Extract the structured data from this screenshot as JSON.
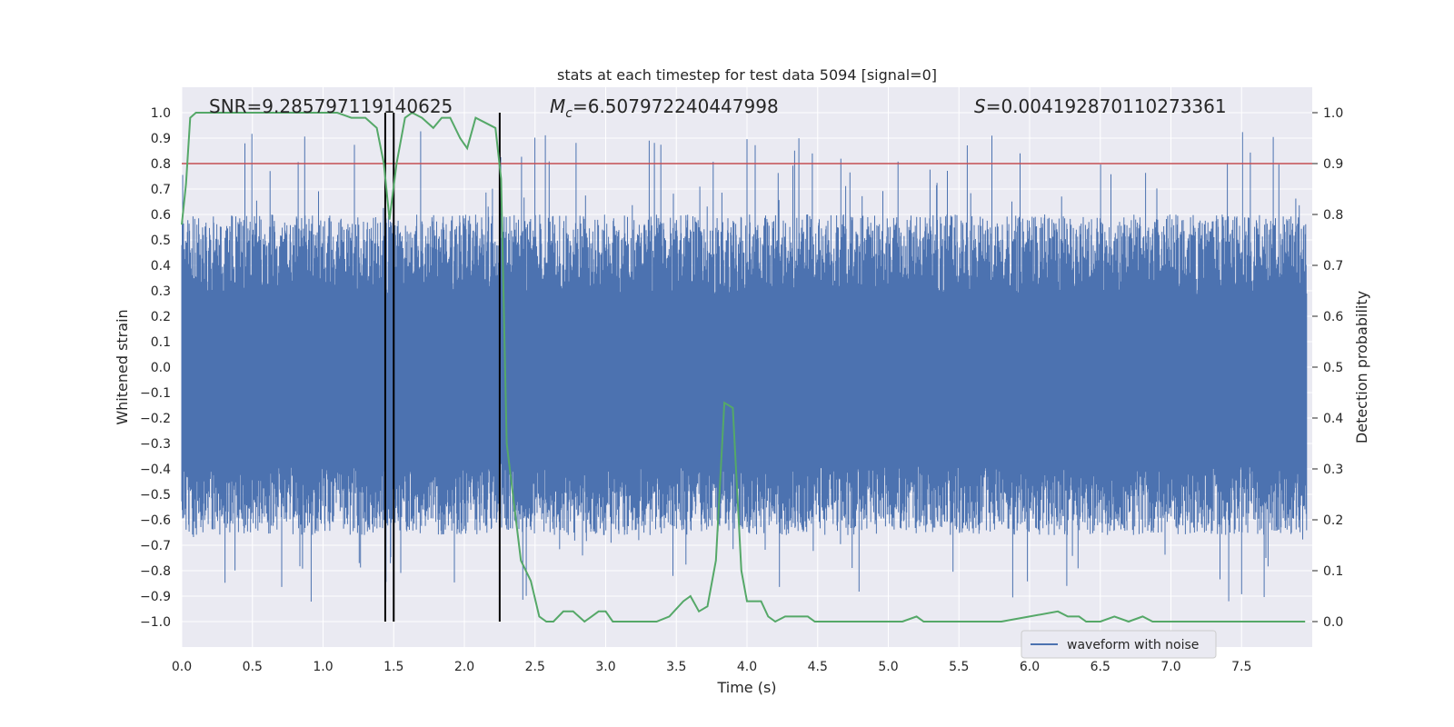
{
  "chart_data": {
    "type": "line",
    "title": "stats at each timestep for test data 5094 [signal=0]",
    "xlabel": "Time (s)",
    "ylabel_left": "Whitened strain",
    "ylabel_right": "Detection probability",
    "xlim": [
      0.0,
      8.0
    ],
    "ylim_left": [
      -1.1,
      1.1
    ],
    "ylim_right": [
      -0.05,
      1.05
    ],
    "x_ticks": [
      "0.0",
      "0.5",
      "1.0",
      "1.5",
      "2.0",
      "2.5",
      "3.0",
      "3.5",
      "4.0",
      "4.5",
      "5.0",
      "5.5",
      "6.0",
      "6.5",
      "7.0",
      "7.5"
    ],
    "y_left_ticks": [
      "1.0",
      "0.9",
      "0.8",
      "0.7",
      "0.6",
      "0.5",
      "0.4",
      "0.3",
      "0.2",
      "0.1",
      "0.0",
      "−0.1",
      "−0.2",
      "−0.3",
      "−0.4",
      "−0.5",
      "−0.6",
      "−0.7",
      "−0.8",
      "−0.9",
      "−1.0"
    ],
    "y_right_ticks": [
      "1.0",
      "0.9",
      "0.8",
      "0.7",
      "0.6",
      "0.5",
      "0.4",
      "0.3",
      "0.2",
      "0.1",
      "0.0"
    ],
    "grid": true,
    "annotations": {
      "snr": "SNR=9.285797119140625",
      "mc_symbol": "M",
      "mc_subscript": "c",
      "mc_value": "=6.507972240447998",
      "s_symbol": "S",
      "s_value": "=0.004192870110273361"
    },
    "threshold": {
      "value": 0.9,
      "color": "#c44e52"
    },
    "vertical_markers": [
      1.44,
      1.5,
      2.25
    ],
    "series": [
      {
        "name": "waveform with noise",
        "color": "#4c72b0",
        "kind": "noise",
        "envelope": 0.6,
        "spike_max": 0.93
      },
      {
        "name": "",
        "color": "#55a868",
        "axis": "right",
        "x": [
          0.0,
          0.03,
          0.06,
          0.1,
          0.2,
          0.4,
          0.6,
          0.8,
          1.0,
          1.1,
          1.2,
          1.3,
          1.38,
          1.43,
          1.47,
          1.52,
          1.58,
          1.63,
          1.7,
          1.78,
          1.84,
          1.9,
          1.97,
          2.02,
          2.08,
          2.15,
          2.22,
          2.26,
          2.3,
          2.4,
          2.47,
          2.53,
          2.58,
          2.63,
          2.7,
          2.77,
          2.85,
          2.9,
          2.95,
          3.0,
          3.05,
          3.12,
          3.2,
          3.28,
          3.36,
          3.45,
          3.55,
          3.6,
          3.66,
          3.72,
          3.78,
          3.84,
          3.9,
          3.96,
          4.0,
          4.05,
          4.1,
          4.15,
          4.2,
          4.27,
          4.33,
          4.38,
          4.43,
          4.48,
          4.55,
          4.62,
          4.7,
          4.8,
          4.9,
          5.0,
          5.1,
          5.2,
          5.25,
          5.3,
          5.4,
          5.5,
          5.6,
          5.8,
          6.0,
          6.2,
          6.27,
          6.35,
          6.4,
          6.5,
          6.6,
          6.7,
          6.8,
          6.87,
          6.93,
          7.0,
          7.2,
          7.4,
          7.6,
          7.8,
          7.95
        ],
        "y": [
          0.78,
          0.86,
          0.99,
          1.0,
          1.0,
          1.0,
          1.0,
          1.0,
          1.0,
          1.0,
          0.99,
          0.99,
          0.97,
          0.9,
          0.79,
          0.9,
          0.99,
          1.0,
          0.99,
          0.97,
          0.99,
          0.99,
          0.95,
          0.93,
          0.99,
          0.98,
          0.97,
          0.87,
          0.35,
          0.12,
          0.08,
          0.01,
          0.0,
          0.0,
          0.02,
          0.02,
          0.0,
          0.01,
          0.02,
          0.02,
          0.0,
          0.0,
          0.0,
          0.0,
          0.0,
          0.01,
          0.04,
          0.05,
          0.02,
          0.03,
          0.12,
          0.43,
          0.42,
          0.1,
          0.04,
          0.04,
          0.04,
          0.01,
          0.0,
          0.01,
          0.01,
          0.01,
          0.01,
          0.0,
          0.0,
          0.0,
          0.0,
          0.0,
          0.0,
          0.0,
          0.0,
          0.01,
          0.0,
          0.0,
          0.0,
          0.0,
          0.0,
          0.0,
          0.01,
          0.02,
          0.01,
          0.01,
          0.0,
          0.0,
          0.01,
          0.0,
          0.01,
          0.0,
          0.0,
          0.0,
          0.0,
          0.0,
          0.0,
          0.0,
          0.0
        ]
      }
    ],
    "legend": {
      "placement": "lower-right",
      "entries": [
        "waveform with noise"
      ]
    }
  }
}
